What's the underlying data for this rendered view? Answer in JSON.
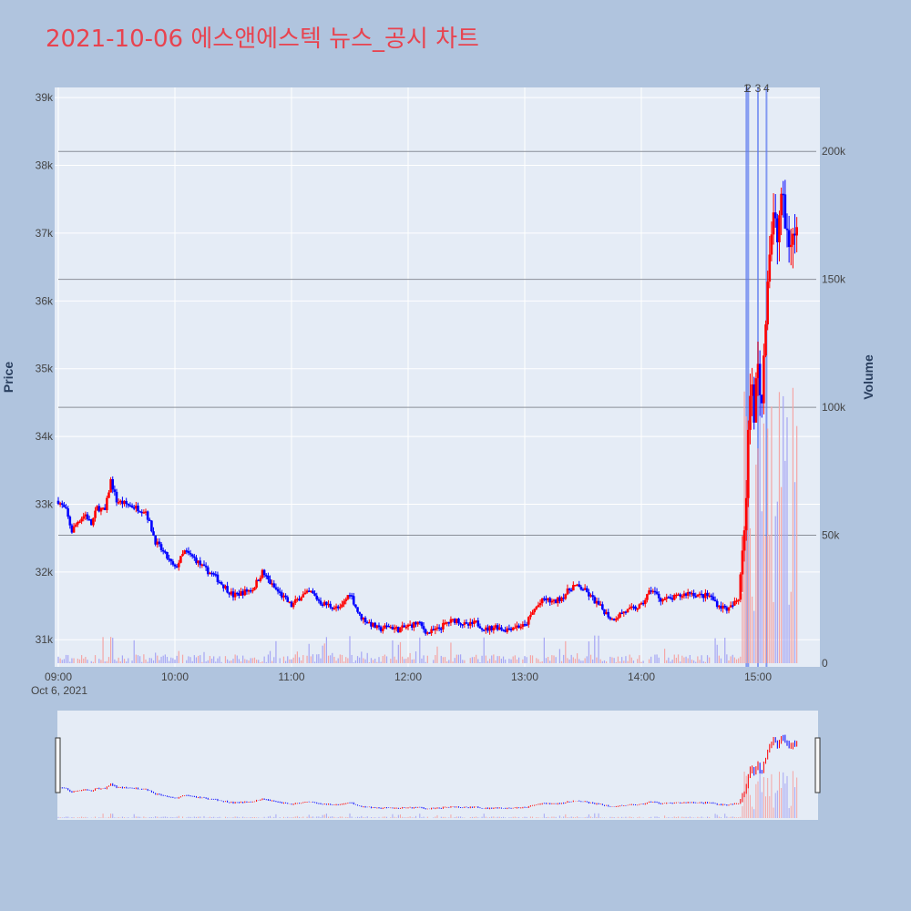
{
  "title": "2021-10-06 에스앤에스텍 뉴스_공시 차트",
  "colors": {
    "background": "#b0c4de",
    "plot_background": "#e5ecf6",
    "title": "#e8434f",
    "up": "#ff0000",
    "down": "#0000ff",
    "volume_up": "#f4a6a6",
    "volume_down": "#a6a6f4",
    "news_line": "#5a78f0"
  },
  "chart_data": {
    "type": "candlestick",
    "title": "2021-10-06 에스앤에스텍 뉴스_공시 차트",
    "date_label": "Oct 6, 2021",
    "x_ticks": [
      "09:00",
      "10:00",
      "11:00",
      "12:00",
      "13:00",
      "14:00",
      "15:00"
    ],
    "x_range": [
      "09:00",
      "15:30"
    ],
    "y_left": {
      "label": "Price",
      "range": [
        30600,
        39150
      ],
      "ticks": [
        31000,
        32000,
        33000,
        34000,
        35000,
        36000,
        37000,
        38000,
        39000
      ],
      "tick_labels": [
        "31k",
        "32k",
        "33k",
        "34k",
        "35k",
        "36k",
        "37k",
        "38k",
        "39k"
      ]
    },
    "y_right": {
      "label": "Volume",
      "range": [
        0,
        225000
      ],
      "ticks": [
        0,
        50000,
        100000,
        150000,
        200000
      ],
      "tick_labels": [
        "0",
        "50k",
        "100k",
        "150k",
        "200k"
      ]
    },
    "grid": true,
    "news_markers": [
      {
        "label": "1",
        "time": "14:55"
      },
      {
        "label": "2",
        "time": "14:55"
      },
      {
        "label": "3",
        "time": "15:00"
      },
      {
        "label": "4",
        "time": "15:03"
      }
    ],
    "price_path": [
      [
        "09:00",
        33050
      ],
      [
        "09:04",
        32900
      ],
      [
        "09:07",
        32600
      ],
      [
        "09:10",
        32750
      ],
      [
        "09:14",
        32850
      ],
      [
        "09:17",
        32700
      ],
      [
        "09:20",
        32950
      ],
      [
        "09:24",
        32900
      ],
      [
        "09:27",
        33350
      ],
      [
        "09:30",
        33050
      ],
      [
        "09:35",
        33000
      ],
      [
        "09:40",
        32950
      ],
      [
        "09:45",
        32900
      ],
      [
        "09:50",
        32450
      ],
      [
        "09:55",
        32250
      ],
      [
        "10:00",
        32050
      ],
      [
        "10:05",
        32300
      ],
      [
        "10:10",
        32200
      ],
      [
        "10:15",
        32050
      ],
      [
        "10:20",
        31950
      ],
      [
        "10:25",
        31800
      ],
      [
        "10:30",
        31650
      ],
      [
        "10:35",
        31700
      ],
      [
        "10:40",
        31750
      ],
      [
        "10:45",
        32000
      ],
      [
        "10:50",
        31800
      ],
      [
        "10:55",
        31650
      ],
      [
        "11:00",
        31500
      ],
      [
        "11:05",
        31650
      ],
      [
        "11:10",
        31700
      ],
      [
        "11:15",
        31550
      ],
      [
        "11:20",
        31500
      ],
      [
        "11:25",
        31450
      ],
      [
        "11:30",
        31700
      ],
      [
        "11:35",
        31350
      ],
      [
        "11:40",
        31250
      ],
      [
        "11:45",
        31150
      ],
      [
        "11:50",
        31200
      ],
      [
        "11:55",
        31150
      ],
      [
        "12:00",
        31200
      ],
      [
        "12:05",
        31250
      ],
      [
        "12:10",
        31100
      ],
      [
        "12:15",
        31150
      ],
      [
        "12:20",
        31250
      ],
      [
        "12:25",
        31300
      ],
      [
        "12:30",
        31200
      ],
      [
        "12:35",
        31250
      ],
      [
        "12:40",
        31150
      ],
      [
        "12:45",
        31200
      ],
      [
        "12:50",
        31150
      ],
      [
        "12:55",
        31200
      ],
      [
        "13:00",
        31200
      ],
      [
        "13:05",
        31450
      ],
      [
        "13:10",
        31600
      ],
      [
        "13:15",
        31550
      ],
      [
        "13:20",
        31650
      ],
      [
        "13:25",
        31800
      ],
      [
        "13:30",
        31750
      ],
      [
        "13:35",
        31600
      ],
      [
        "13:40",
        31450
      ],
      [
        "13:45",
        31300
      ],
      [
        "13:50",
        31400
      ],
      [
        "13:55",
        31450
      ],
      [
        "14:00",
        31500
      ],
      [
        "14:05",
        31750
      ],
      [
        "14:10",
        31600
      ],
      [
        "14:15",
        31600
      ],
      [
        "14:20",
        31650
      ],
      [
        "14:25",
        31700
      ],
      [
        "14:30",
        31650
      ],
      [
        "14:35",
        31650
      ],
      [
        "14:40",
        31500
      ],
      [
        "14:45",
        31450
      ],
      [
        "14:50",
        31600
      ],
      [
        "14:52",
        32400
      ],
      [
        "14:54",
        33000
      ],
      [
        "14:56",
        34800
      ],
      [
        "14:58",
        34400
      ],
      [
        "15:00",
        35000
      ],
      [
        "15:02",
        34500
      ],
      [
        "15:04",
        35900
      ],
      [
        "15:06",
        36800
      ],
      [
        "15:08",
        37200
      ],
      [
        "15:10",
        36900
      ],
      [
        "15:12",
        37600
      ],
      [
        "15:14",
        37100
      ],
      [
        "15:16",
        36900
      ],
      [
        "15:20",
        37000
      ]
    ]
  }
}
